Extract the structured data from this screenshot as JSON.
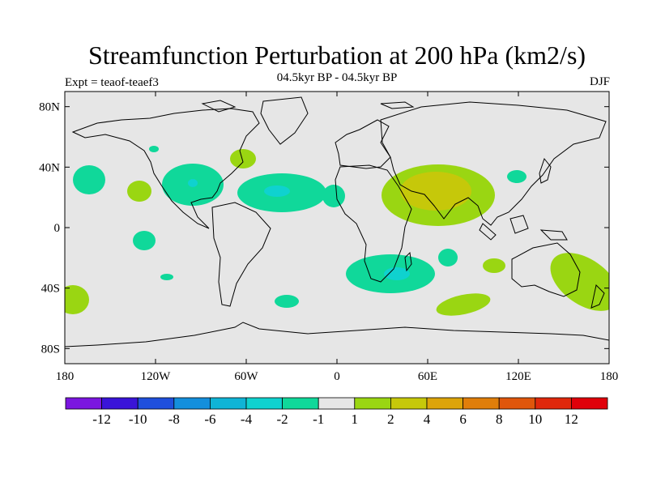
{
  "title": "Streamfunction Perturbation at 200 hPa (km2/s)",
  "subtitle": "04.5kyr BP - 04.5kyr BP",
  "left_label": "Expt = teaof-teaef3",
  "right_label": "DJF",
  "axes": {
    "x_ticks": [
      "180",
      "120W",
      "60W",
      "0",
      "60E",
      "120E",
      "180"
    ],
    "y_ticks": [
      "80N",
      "40N",
      "0",
      "40S",
      "80S"
    ],
    "lon_range": [
      -180,
      180
    ],
    "lat_range": [
      -90,
      90
    ]
  },
  "colorbar": {
    "labels": [
      "-12",
      "-10",
      "-8",
      "-6",
      "-4",
      "-2",
      "-1",
      "1",
      "2",
      "4",
      "6",
      "8",
      "10",
      "12"
    ],
    "colors": [
      "#7b16e0",
      "#3a14d8",
      "#1f4fdc",
      "#148fdc",
      "#0fb4d6",
      "#0fd2cf",
      "#10d89a",
      "#e6e6e6",
      "#9ad612",
      "#c6c80a",
      "#dca40a",
      "#e07e0a",
      "#e0560c",
      "#e0280c",
      "#e0000a"
    ]
  },
  "colors": {
    "ocean_background": "#e6e6e6",
    "coast": "#000000"
  }
}
